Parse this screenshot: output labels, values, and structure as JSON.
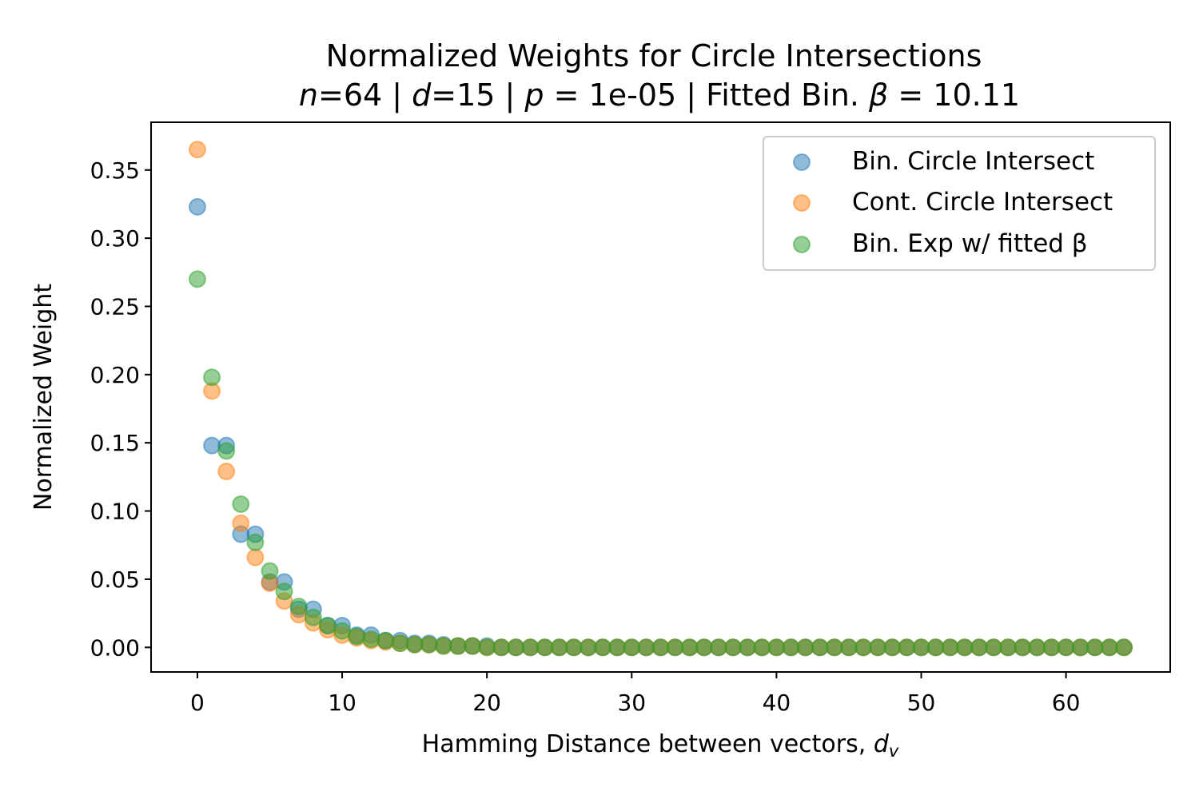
{
  "chart_data": {
    "type": "scatter",
    "title": "Normalized Weights for Circle Intersections",
    "subtitle": {
      "n_label": "n",
      "n_value": "=64 | ",
      "d_label": "d",
      "d_value": "=15 | ",
      "p_label": "p",
      "p_value": " = 1e-05 | Fitted Bin. ",
      "beta_label": "β",
      "beta_value": " = 10.11"
    },
    "xlabel": "Hamming Distance between vectors, ",
    "xlabel_var": "d",
    "xlabel_sub": "v",
    "ylabel": "Normalized Weight",
    "xlim": [
      -3.2,
      67.2
    ],
    "ylim": [
      -0.018,
      0.385
    ],
    "xticks": [
      0,
      10,
      20,
      30,
      40,
      50,
      60
    ],
    "xtick_labels": [
      "0",
      "10",
      "20",
      "30",
      "40",
      "50",
      "60"
    ],
    "yticks": [
      0.0,
      0.05,
      0.1,
      0.15,
      0.2,
      0.25,
      0.3,
      0.35
    ],
    "ytick_labels": [
      "0.00",
      "0.05",
      "0.10",
      "0.15",
      "0.20",
      "0.25",
      "0.30",
      "0.35"
    ],
    "grid": false,
    "legend_position": "top-right",
    "x": [
      0,
      1,
      2,
      3,
      4,
      5,
      6,
      7,
      8,
      9,
      10,
      11,
      12,
      13,
      14,
      15,
      16,
      17,
      18,
      19,
      20,
      21,
      22,
      23,
      24,
      25,
      26,
      27,
      28,
      29,
      30,
      31,
      32,
      33,
      34,
      35,
      36,
      37,
      38,
      39,
      40,
      41,
      42,
      43,
      44,
      45,
      46,
      47,
      48,
      49,
      50,
      51,
      52,
      53,
      54,
      55,
      56,
      57,
      58,
      59,
      60,
      61,
      62,
      63,
      64
    ],
    "series": [
      {
        "name": "Bin. Circle Intersect",
        "color": "#1f77b4",
        "values": [
          0.323,
          0.148,
          0.148,
          0.083,
          0.083,
          0.048,
          0.048,
          0.028,
          0.028,
          0.016,
          0.016,
          0.009,
          0.009,
          0.005,
          0.005,
          0.003,
          0.003,
          0.002,
          0.001,
          0.001,
          0.001,
          0,
          0,
          0,
          0,
          0,
          0,
          0,
          0,
          0,
          0,
          0,
          0,
          0,
          0,
          0,
          0,
          0,
          0,
          0,
          0,
          0,
          0,
          0,
          0,
          0,
          0,
          0,
          0,
          0,
          0,
          0,
          0,
          0,
          0,
          0,
          0,
          0,
          0,
          0,
          0,
          0,
          0,
          0,
          0
        ]
      },
      {
        "name": "Cont. Circle Intersect",
        "color": "#ff7f0e",
        "values": [
          0.365,
          0.188,
          0.129,
          0.091,
          0.066,
          0.047,
          0.034,
          0.024,
          0.018,
          0.013,
          0.009,
          0.007,
          0.005,
          0.004,
          0.003,
          0.002,
          0.002,
          0.001,
          0.001,
          0.001,
          0,
          0,
          0,
          0,
          0,
          0,
          0,
          0,
          0,
          0,
          0,
          0,
          0,
          0,
          0,
          0,
          0,
          0,
          0,
          0,
          0,
          0,
          0,
          0,
          0,
          0,
          0,
          0,
          0,
          0,
          0,
          0,
          0,
          0,
          0,
          0,
          0,
          0,
          0,
          0,
          0,
          0,
          0,
          0,
          0
        ]
      },
      {
        "name": "Bin. Exp w/ fitted β",
        "color": "#2ca02c",
        "values": [
          0.27,
          0.198,
          0.144,
          0.105,
          0.077,
          0.056,
          0.041,
          0.03,
          0.022,
          0.016,
          0.012,
          0.008,
          0.006,
          0.005,
          0.003,
          0.002,
          0.002,
          0.001,
          0.001,
          0.001,
          0,
          0,
          0,
          0,
          0,
          0,
          0,
          0,
          0,
          0,
          0,
          0,
          0,
          0,
          0,
          0,
          0,
          0,
          0,
          0,
          0,
          0,
          0,
          0,
          0,
          0,
          0,
          0,
          0,
          0,
          0,
          0,
          0,
          0,
          0,
          0,
          0,
          0,
          0,
          0,
          0,
          0,
          0,
          0,
          0
        ]
      }
    ]
  }
}
